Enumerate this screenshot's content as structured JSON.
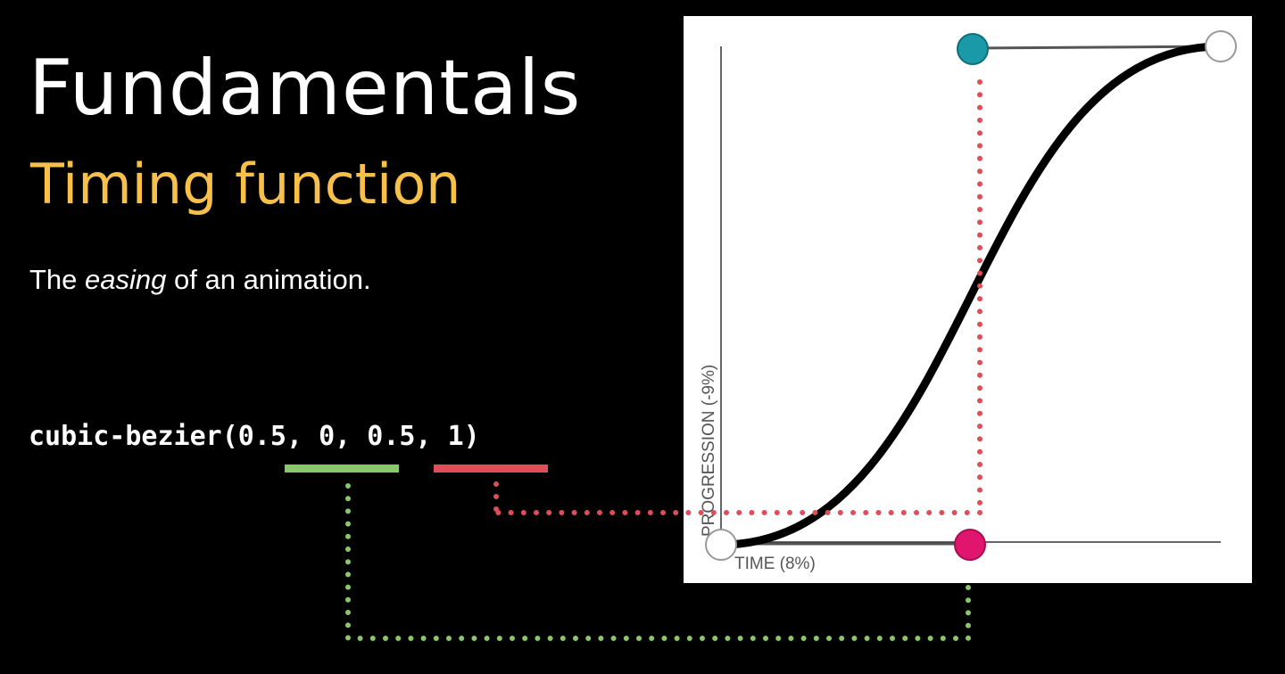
{
  "slide": {
    "title": "Fundamentals",
    "subtitle": "Timing function",
    "description_before": "The ",
    "description_em": "easing",
    "description_after": " of an animation.",
    "code": "cubic-bezier(0.5, 0, 0.5, 1)"
  },
  "graph": {
    "x_axis_label": "TIME (8%)",
    "y_axis_label": "PROGRESSION (-9%)",
    "bezier": [
      0.5,
      0,
      0.5,
      1
    ]
  },
  "colors": {
    "background": "#000000",
    "title": "#ffffff",
    "subtitle": "#f7c04a",
    "first_control": "#8cc66a",
    "second_control": "#dd4f58",
    "handle_teal": "#1a9aa8",
    "handle_pink": "#e0156e",
    "curve": "#000000"
  }
}
